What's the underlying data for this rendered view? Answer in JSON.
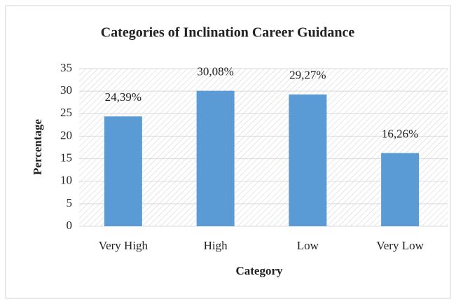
{
  "chart_data": {
    "type": "bar",
    "title": "Categories of Inclination  Career Guidance",
    "xlabel": "Category",
    "ylabel": "Percentage",
    "categories": [
      "Very High",
      "High",
      "Low",
      "Very Low"
    ],
    "values": [
      24.39,
      30.08,
      29.27,
      16.26
    ],
    "value_labels": [
      "24,39%",
      "30,08%",
      "29,27%",
      "16,26%"
    ],
    "color": "#5b9bd5",
    "ylim": [
      0,
      35
    ],
    "yticks": [
      0,
      5,
      10,
      15,
      20,
      25,
      30,
      35
    ],
    "grid": true
  }
}
